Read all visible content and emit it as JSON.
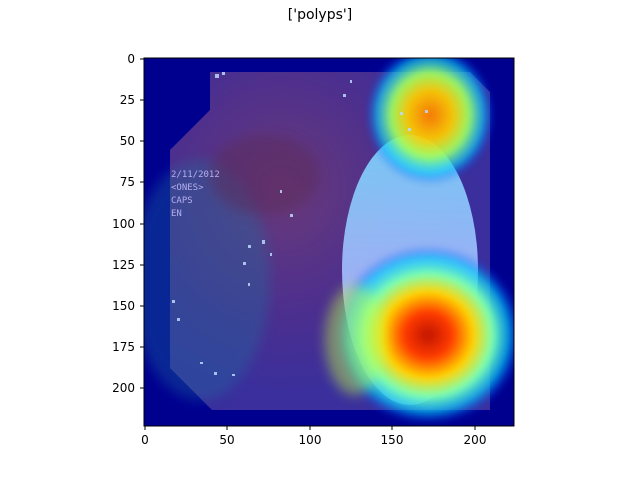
{
  "figure": {
    "title": "['polyps']"
  },
  "image_panel": {
    "description": "",
    "overlay_text": [
      "2/11/2012",
      "<ONES>",
      "CAPS",
      "EN"
    ],
    "colormap": "jet"
  },
  "axes": {
    "x_ticks": [
      "0",
      "50",
      "100",
      "150",
      "200"
    ],
    "y_ticks": [
      "0",
      "25",
      "50",
      "75",
      "100",
      "125",
      "150",
      "175",
      "200"
    ],
    "xlim": [
      0,
      224
    ],
    "ylim": [
      224,
      0
    ]
  },
  "colors": {
    "background": "#ffffff",
    "axis": "#000000",
    "deep_blue": "#00008f",
    "heat_red": "#ff2a00"
  }
}
